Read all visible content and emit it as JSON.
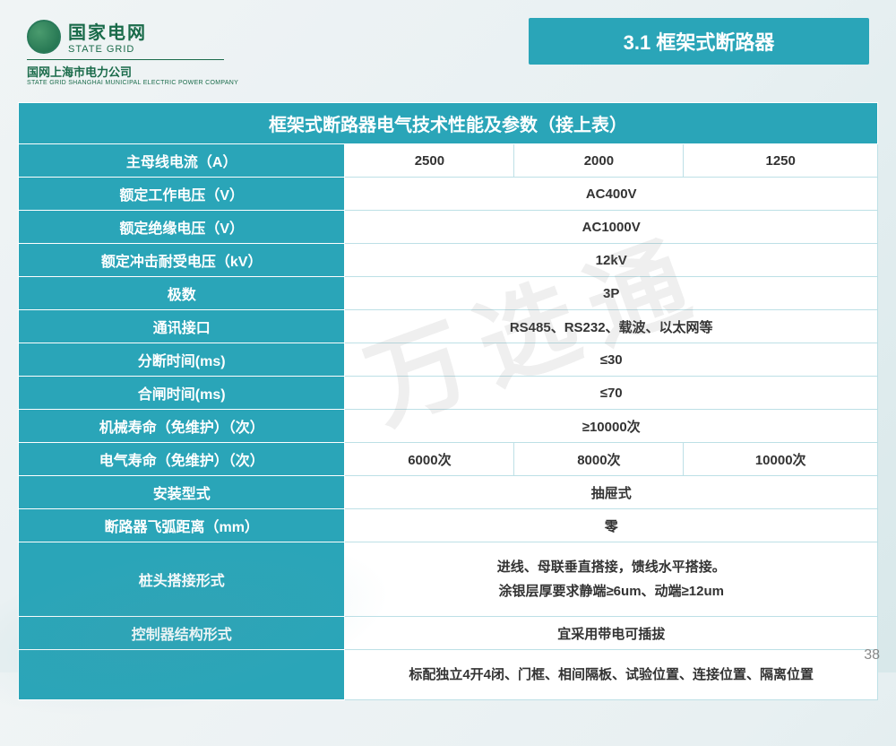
{
  "header": {
    "logo_cn": "国家电网",
    "logo_en": "STATE GRID",
    "subcompany_cn": "国网上海市电力公司",
    "subcompany_en": "STATE GRID SHANGHAI MUNICIPAL ELECTRIC POWER COMPANY",
    "section_badge": "3.1 框架式断路器"
  },
  "table": {
    "title": "框架式断路器电气技术性能及参数（接上表）",
    "rows": [
      {
        "label": "主母线电流（A）",
        "cells": [
          "2500",
          "2000",
          "1250"
        ]
      },
      {
        "label": "额定工作电压（V）",
        "value": "AC400V"
      },
      {
        "label": "额定绝缘电压（V）",
        "value": "AC1000V"
      },
      {
        "label": "额定冲击耐受电压（kV）",
        "value": "12kV"
      },
      {
        "label": "极数",
        "value": "3P"
      },
      {
        "label": "通讯接口",
        "value": "RS485、RS232、载波、以太网等"
      },
      {
        "label": "分断时间(ms)",
        "value": "≤30"
      },
      {
        "label": "合闸时间(ms)",
        "value": "≤70"
      },
      {
        "label": "机械寿命（免维护）（次）",
        "value": "≥10000次"
      },
      {
        "label": "电气寿命（免维护）（次）",
        "cells": [
          "6000次",
          "8000次",
          "10000次"
        ]
      },
      {
        "label": "安装型式",
        "value": "抽屉式"
      },
      {
        "label": "断路器飞弧距离（mm）",
        "value": "零"
      },
      {
        "label": "桩头搭接形式",
        "value_multiline": "进线、母联垂直搭接，馈线水平搭接。\n涂银层厚要求静端≥6um、动端≥12um"
      },
      {
        "label": "控制器结构形式",
        "value": "宜采用带电可插拔"
      }
    ],
    "footer_value": "标配独立4开4闭、门框、相间隔板、试验位置、连接位置、隔离位置"
  },
  "watermark": "万选通",
  "page_number": "38",
  "colors": {
    "brand_teal": "#2aa5b8",
    "brand_green": "#1a6b4a",
    "cell_border": "#bde0e6"
  }
}
